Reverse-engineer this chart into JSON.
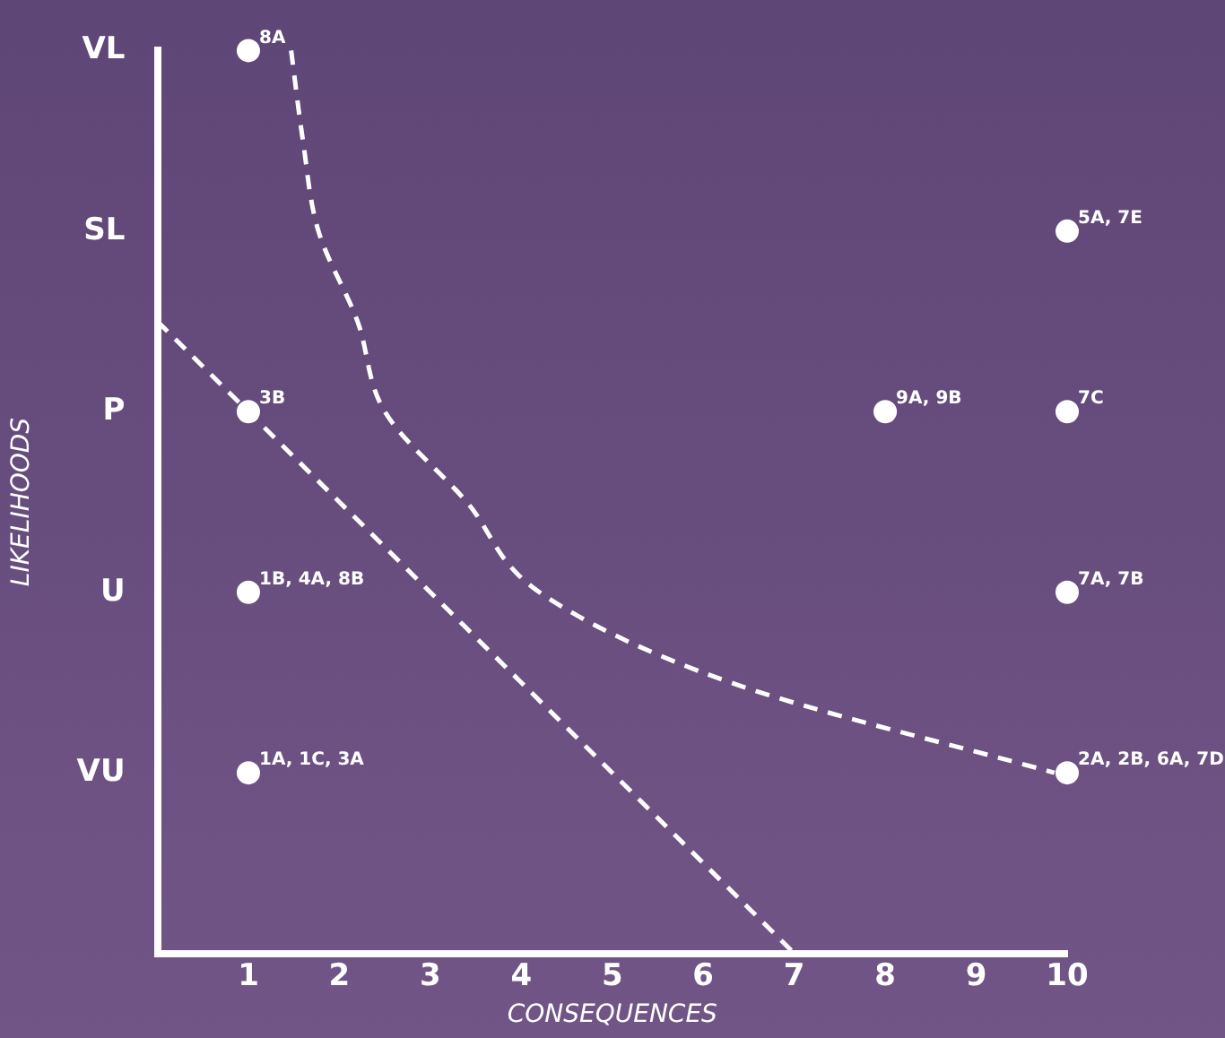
{
  "chart_data": {
    "type": "scatter",
    "orientation": "horizontal",
    "xlabel": "CONSEQUENCES",
    "ylabel": "LIKELIHOODS",
    "xlim": [
      0,
      10
    ],
    "xticks": [
      1,
      2,
      3,
      4,
      5,
      6,
      7,
      8,
      9,
      10
    ],
    "categories": [
      "VL",
      null,
      "SL",
      null,
      "P",
      null,
      "U",
      null,
      "VU",
      null,
      null
    ],
    "series": [
      {
        "color": "#ffffff",
        "marker": "circle",
        "values": [
          1,
          null,
          null,
          null,
          1,
          null,
          1,
          null,
          1,
          null,
          null
        ]
      },
      {
        "color": "#ffffff",
        "marker": "circle",
        "values": [
          null,
          null,
          null,
          null,
          8,
          null,
          null,
          null,
          null,
          null,
          null
        ]
      },
      {
        "color": "#ffffff",
        "marker": "circle",
        "values": [
          null,
          null,
          10,
          null,
          10,
          null,
          10,
          null,
          10,
          null,
          null
        ]
      },
      {
        "type": "line",
        "color": "#ffffff",
        "marker": "none",
        "line_style": "dashed",
        "values": [
          null,
          null,
          null,
          0,
          1,
          2,
          3,
          4,
          5,
          6,
          7
        ]
      },
      {
        "type": "line",
        "color": "#ffffff",
        "marker": "none",
        "line_style": "dashed",
        "values": [
          1.47,
          1.6,
          1.77,
          2.2,
          2.5,
          3.4,
          4.2,
          6.3,
          9.86,
          null,
          null
        ]
      }
    ],
    "annotations": [
      {
        "text": "8A",
        "x": 1,
        "y": "VL"
      },
      {
        "text": "3B",
        "x": 1,
        "y": "P"
      },
      {
        "text": "1B, 4A, 8B",
        "x": 1,
        "y": "U"
      },
      {
        "text": "1A, 1C, 3A",
        "x": 1,
        "y": "VU"
      },
      {
        "text": "9A, 9B",
        "x": 8,
        "y": "P"
      },
      {
        "text": "5A, 7E",
        "x": 10,
        "y": "SL"
      },
      {
        "text": "7C",
        "x": 10,
        "y": "P"
      },
      {
        "text": "7A, 7B",
        "x": 10,
        "y": "U"
      },
      {
        "text": "2A, 2B, 6A, 7D",
        "x": 10,
        "y": "VU"
      }
    ]
  }
}
